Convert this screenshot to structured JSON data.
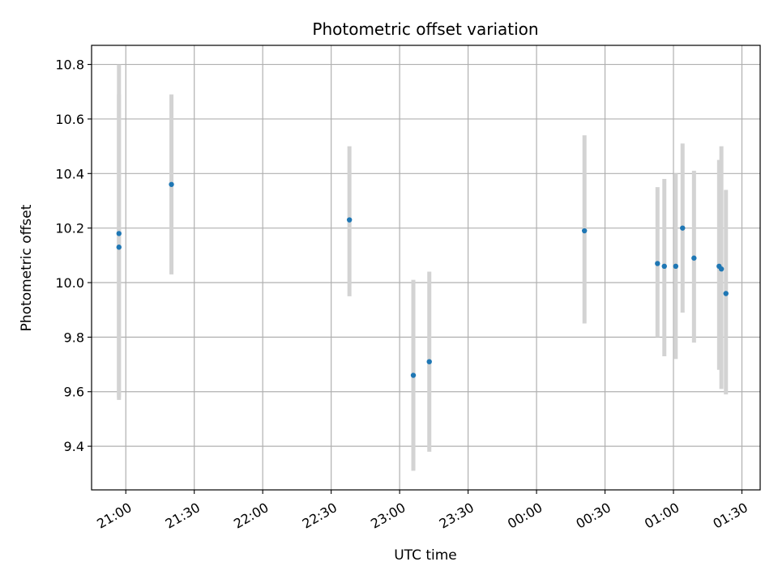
{
  "chart_data": {
    "type": "scatter",
    "title": "Photometric offset variation",
    "xlabel": "UTC time",
    "ylabel": "Photometric offset",
    "x_ticks": [
      "20:59",
      "21:29",
      "21:59",
      "22:29",
      "22:59",
      "23:29",
      "23:59",
      "00:29",
      "00:59",
      "01:29"
    ],
    "x_tick_labels": [
      "21:00",
      "21:30",
      "22:00",
      "22:30",
      "23:00",
      "23:30",
      "00:00",
      "00:30",
      "01:00",
      "01:30"
    ],
    "xlim": [
      "20:44",
      "01:37"
    ],
    "ylim": [
      9.24,
      10.87
    ],
    "y_ticks": [
      9.4,
      9.6,
      9.8,
      10.0,
      10.2,
      10.4,
      10.6,
      10.8
    ],
    "y_tick_labels": [
      "9.4",
      "9.6",
      "9.8",
      "10.0",
      "10.2",
      "10.4",
      "10.6",
      "10.8"
    ],
    "grid": true,
    "marker_color": "#1f77b4",
    "errorbar_color": "#d3d3d3",
    "points": [
      {
        "t": "20:56",
        "y": 10.18,
        "y_low": 9.57,
        "y_high": 10.8
      },
      {
        "t": "20:56",
        "y": 10.13,
        "y_low": 9.58,
        "y_high": 10.69
      },
      {
        "t": "21:19",
        "y": 10.36,
        "y_low": 10.03,
        "y_high": 10.69
      },
      {
        "t": "22:37",
        "y": 10.23,
        "y_low": 9.95,
        "y_high": 10.5
      },
      {
        "t": "23:05",
        "y": 9.66,
        "y_low": 9.31,
        "y_high": 10.01
      },
      {
        "t": "23:12",
        "y": 9.71,
        "y_low": 9.38,
        "y_high": 10.04
      },
      {
        "t": "00:20",
        "y": 10.19,
        "y_low": 9.85,
        "y_high": 10.54
      },
      {
        "t": "00:52",
        "y": 10.07,
        "y_low": 9.8,
        "y_high": 10.35
      },
      {
        "t": "00:55",
        "y": 10.06,
        "y_low": 9.73,
        "y_high": 10.38
      },
      {
        "t": "01:00",
        "y": 10.06,
        "y_low": 9.72,
        "y_high": 10.4
      },
      {
        "t": "01:03",
        "y": 10.2,
        "y_low": 9.89,
        "y_high": 10.51
      },
      {
        "t": "01:08",
        "y": 10.09,
        "y_low": 9.78,
        "y_high": 10.41
      },
      {
        "t": "01:19",
        "y": 10.06,
        "y_low": 9.68,
        "y_high": 10.45
      },
      {
        "t": "01:20",
        "y": 10.05,
        "y_low": 9.61,
        "y_high": 10.5
      },
      {
        "t": "01:22",
        "y": 9.96,
        "y_low": 9.59,
        "y_high": 10.34
      }
    ]
  }
}
